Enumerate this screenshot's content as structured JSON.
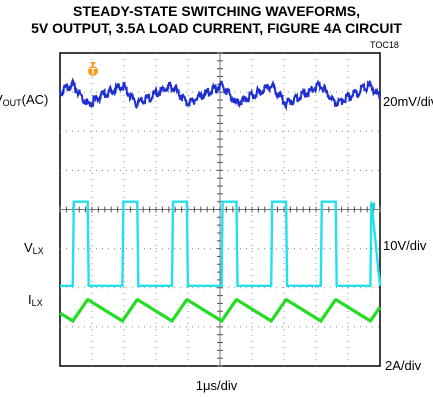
{
  "title_line1": "STEADY-STATE SWITCHING WAVEFORMS,",
  "title_line2": "5V OUTPUT, 3.5A LOAD CURRENT, FIGURE 4A CIRCUIT",
  "toc": "TOC18",
  "trigger_marker": "T",
  "chart_data": {
    "type": "line",
    "grid": true,
    "x_divisions": 10,
    "y_divisions": 8,
    "xlabel": "1μs/div",
    "time_per_div_us": 1,
    "switching_period_us": 1.55,
    "first_rising_edge_us": 0.4,
    "duty_cycle": 0.3,
    "series": [
      {
        "label_main": "V",
        "label_sub": "OUT",
        "label_suffix": "(AC)",
        "scale": "20mV/div",
        "baseline_div": 7.0,
        "ripple_pkpk_mV": 16,
        "color": "#1f2fd0"
      },
      {
        "label_main": "V",
        "label_sub": "LX",
        "label_suffix": "",
        "scale": "10V/div",
        "low_div": 2.05,
        "high_div": 4.2,
        "color": "#22e0ee"
      },
      {
        "label_main": "I",
        "label_sub": "LX",
        "label_suffix": "",
        "scale": "2A/div",
        "valley_div": 1.15,
        "peak_div": 1.7,
        "color": "#22dd22"
      }
    ]
  }
}
